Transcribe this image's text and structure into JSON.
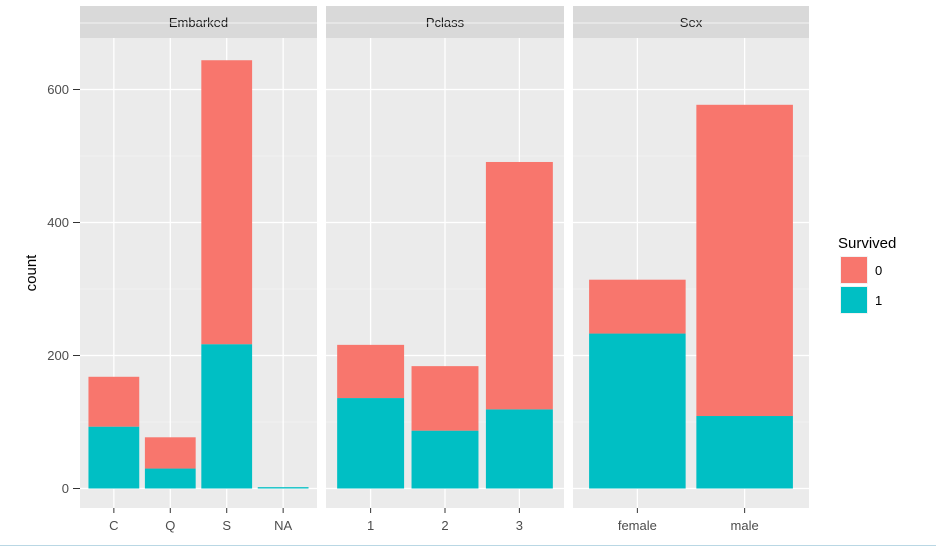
{
  "chart_data": {
    "type": "bar",
    "stacked": true,
    "ylabel": "count",
    "xlabel": "",
    "ylim": [
      0,
      700
    ],
    "y_ticks": [
      0,
      200,
      400,
      600
    ],
    "grid": true,
    "legend": {
      "title": "Survived",
      "placement": "right",
      "entries": [
        {
          "label": "0",
          "color": "#F8766D"
        },
        {
          "label": "1",
          "color": "#00BFC4"
        }
      ]
    },
    "facets": [
      {
        "title": "Embarked",
        "categories": [
          "C",
          "Q",
          "S",
          "NA"
        ],
        "series": [
          {
            "name": "0",
            "values": [
              75,
              47,
              427,
              0
            ]
          },
          {
            "name": "1",
            "values": [
              93,
              30,
              217,
              2
            ]
          }
        ]
      },
      {
        "title": "Pclass",
        "categories": [
          "1",
          "2",
          "3"
        ],
        "series": [
          {
            "name": "0",
            "values": [
              80,
              97,
              372
            ]
          },
          {
            "name": "1",
            "values": [
              136,
              87,
              119
            ]
          }
        ]
      },
      {
        "title": "Sex",
        "categories": [
          "female",
          "male"
        ],
        "series": [
          {
            "name": "0",
            "values": [
              81,
              468
            ]
          },
          {
            "name": "1",
            "values": [
              233,
              109
            ]
          }
        ]
      }
    ]
  },
  "colors": {
    "panel_background": "#EBEBEB",
    "strip_background": "#D9D9D9",
    "grid_major": "#FFFFFF",
    "grid_minor": "#F2F2F2",
    "axis_text": "#4D4D4D"
  }
}
